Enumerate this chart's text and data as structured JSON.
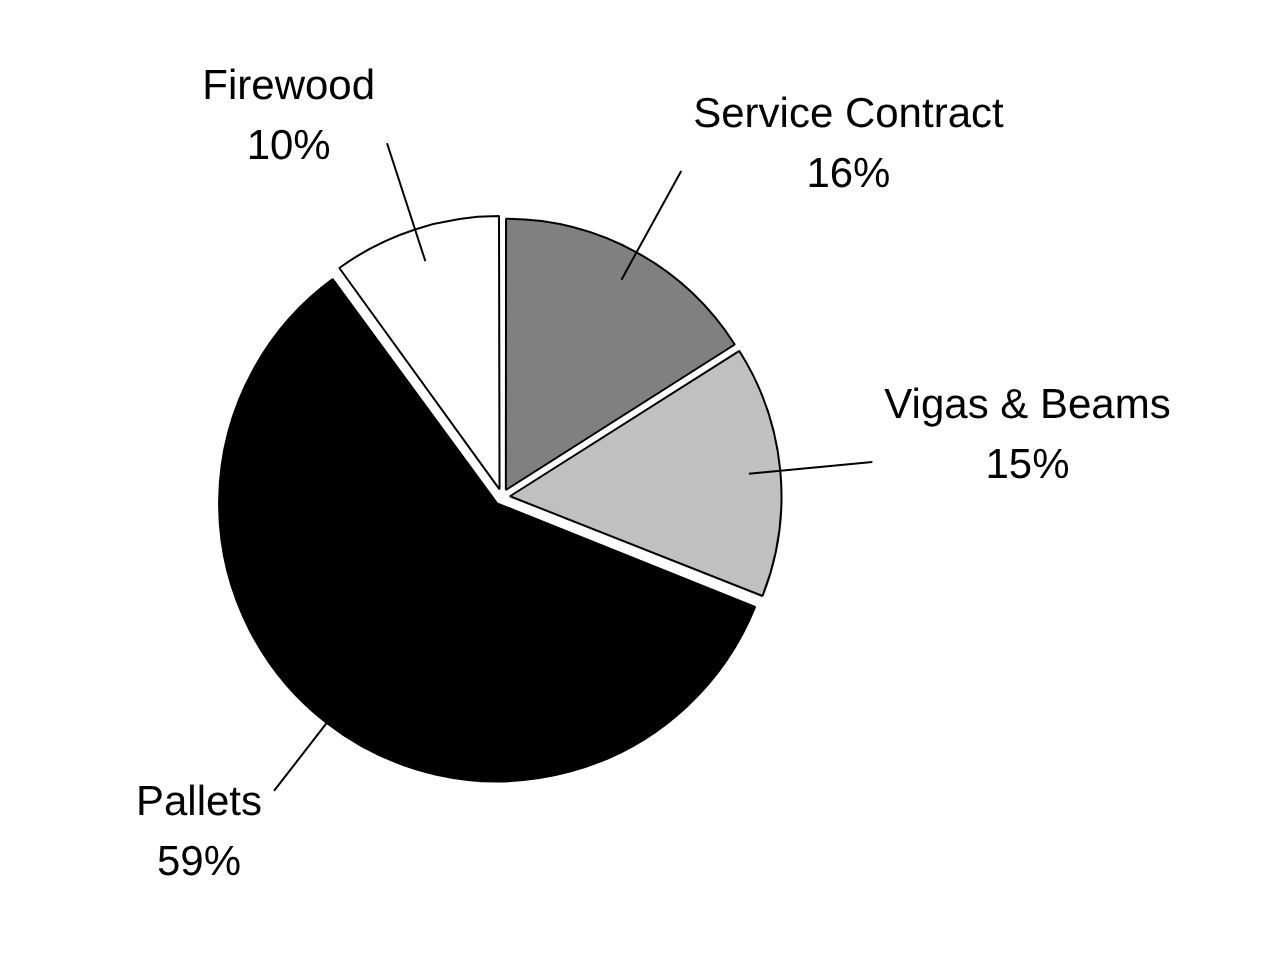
{
  "chart_data": {
    "type": "pie",
    "categories": [
      "Service Contract",
      "Vigas & Beams",
      "Pallets",
      "Firewood"
    ],
    "values": [
      16,
      15,
      59,
      10
    ],
    "value_labels": [
      "16%",
      "15%",
      "59%",
      "10%"
    ],
    "colors": [
      "#808080",
      "#c0c0c0",
      "#000000",
      "#ffffff"
    ],
    "legend": false
  }
}
